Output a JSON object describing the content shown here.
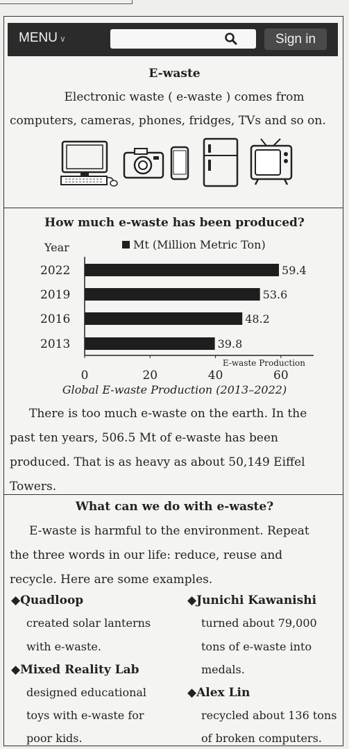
{
  "navbar": {
    "menu_label": "MENU",
    "signin_label": "Sign in"
  },
  "intro": {
    "title": "E-waste",
    "line1": "Electronic waste ( e-waste ) comes from",
    "line2": "computers, cameras, phones, fridges, TVs and so on."
  },
  "devices": [
    "computer-icon",
    "camera-icon",
    "phone-icon",
    "fridge-icon",
    "tv-icon"
  ],
  "chart_data": {
    "type": "bar",
    "orientation": "horizontal",
    "title": "How much e-waste has been produced?",
    "caption": "Global E-waste Production (2013–2022)",
    "ylabel": "Year",
    "legend": "Mt (Million Metric Ton)",
    "xlabel_note": "E-waste Production",
    "categories": [
      "2022",
      "2019",
      "2016",
      "2013"
    ],
    "values": [
      59.4,
      53.6,
      48.2,
      39.8
    ],
    "value_labels": [
      "59.4",
      "53.6",
      "48.2",
      "39.8"
    ],
    "xticks": [
      "0",
      "20",
      "40",
      "60"
    ],
    "xlim": [
      0,
      70
    ],
    "bar_color": "#1e1e1e"
  },
  "facts": {
    "lines": [
      "There is too much e-waste on the earth. In the",
      "past ten years, 506.5 Mt of e-waste has been",
      "produced. That is as heavy as about 50,149 Eiffel",
      "Towers."
    ]
  },
  "actions": {
    "title": "What can we do with e-waste?",
    "lines": [
      "E-waste is harmful to the environment. Repeat",
      "the three words in our life: reduce, reuse and",
      "recycle. Here are some examples."
    ],
    "examples": [
      {
        "name": "◆Quadloop",
        "lines": [
          "created solar lanterns",
          "with e-waste."
        ]
      },
      {
        "name": "◆Mixed Reality Lab",
        "lines": [
          "designed educational",
          "toys with e-waste for",
          "poor kids."
        ]
      },
      {
        "name": "◆Junichi Kawanishi",
        "lines": [
          "turned about 79,000",
          "tons of e-waste into",
          "medals."
        ]
      },
      {
        "name": "◆Alex Lin",
        "lines": [
          "recycled about 136 tons",
          "of broken computers."
        ]
      }
    ]
  }
}
